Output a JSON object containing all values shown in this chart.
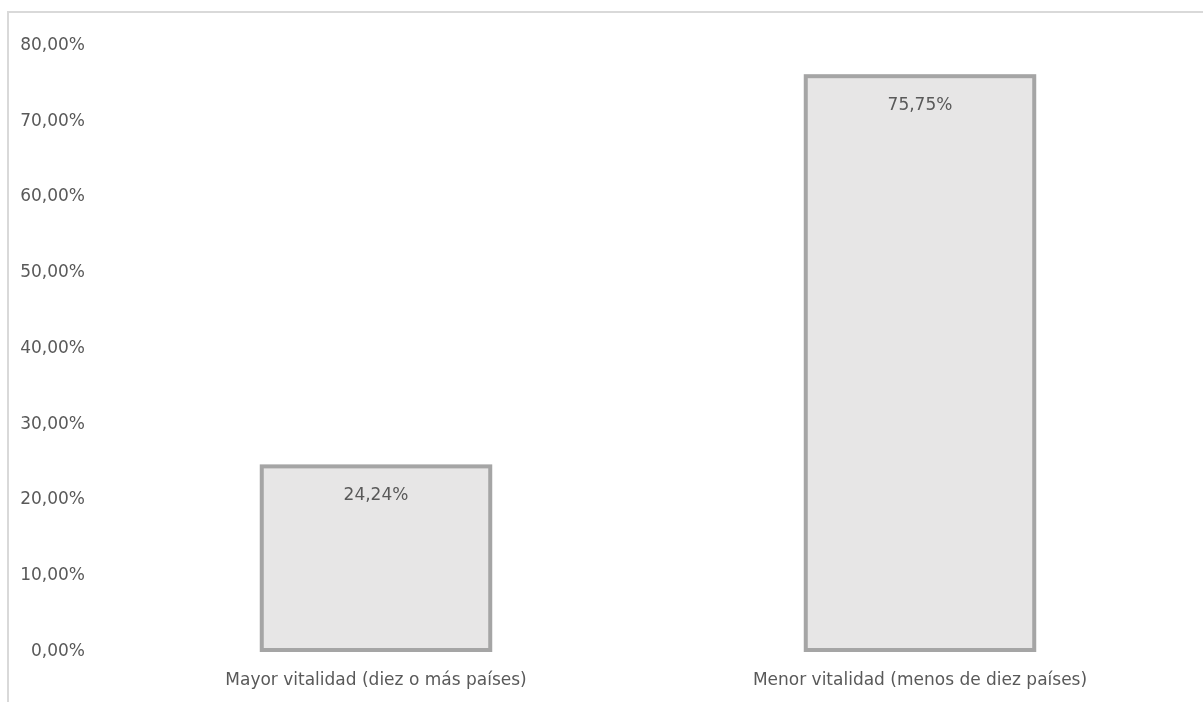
{
  "chart_data": {
    "type": "bar",
    "categories": [
      "Mayor vitalidad (diez o más países)",
      "Menor vitalidad (menos de diez países)"
    ],
    "values": [
      24.24,
      75.75
    ],
    "color": "#e7e6e6",
    "value_labels": [
      "24,24%",
      "75,75%"
    ],
    "ylim": [
      0,
      80
    ],
    "yticks": [
      {
        "value": 0,
        "label": "0,00%"
      },
      {
        "value": 10,
        "label": "10,00%"
      },
      {
        "value": 20,
        "label": "20,00%"
      },
      {
        "value": 30,
        "label": "30,00%"
      },
      {
        "value": 40,
        "label": "40,00%"
      },
      {
        "value": 50,
        "label": "50,00%"
      },
      {
        "value": 60,
        "label": "60,00%"
      },
      {
        "value": 70,
        "label": "70,00%"
      },
      {
        "value": 80,
        "label": "80,00%"
      }
    ]
  }
}
